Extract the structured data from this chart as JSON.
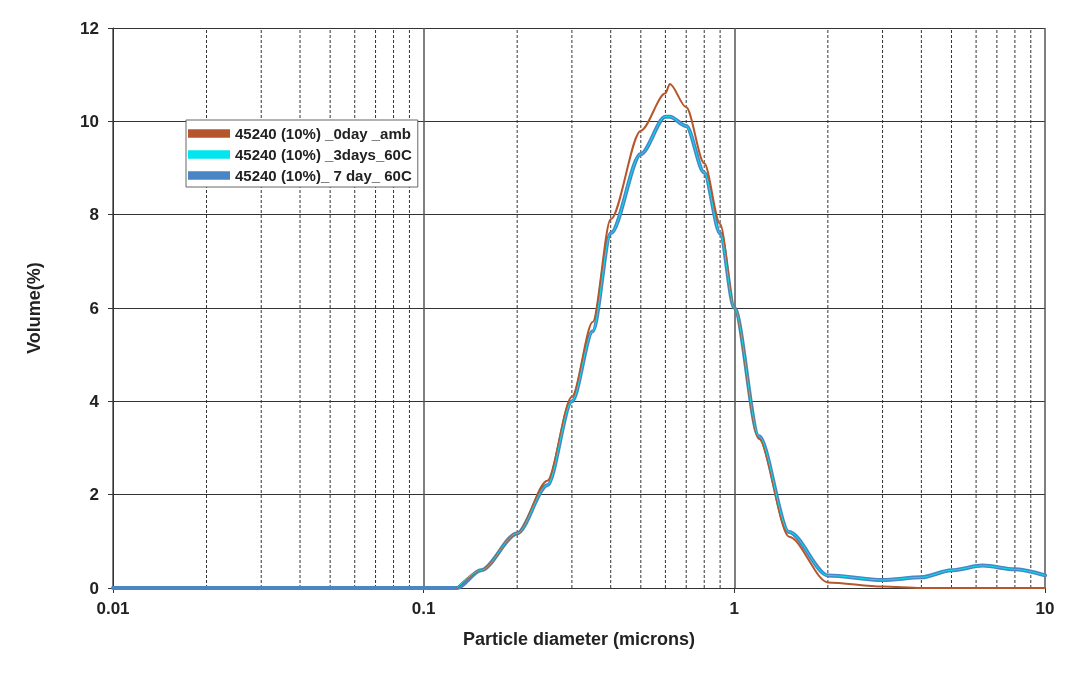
{
  "chart_data": {
    "type": "line",
    "xlabel": "Particle diameter (microns)",
    "ylabel": "Volume(%)",
    "x": [
      0.01,
      0.05,
      0.1,
      0.128,
      0.153,
      0.2,
      0.25,
      0.3,
      0.35,
      0.4,
      0.5,
      0.6,
      0.62,
      0.7,
      0.8,
      0.9,
      1.0,
      1.2,
      1.5,
      2,
      3,
      4,
      5,
      6.3,
      8,
      10
    ],
    "series": [
      {
        "name": "45240 (10%) _0day _amb",
        "color": "#b5572b",
        "values": [
          null,
          null,
          null,
          0,
          0.38,
          1.17,
          2.3,
          4.1,
          5.7,
          7.9,
          9.8,
          10.6,
          10.8,
          10.3,
          9.1,
          7.8,
          6.0,
          3.2,
          1.1,
          0.12,
          0.03,
          0,
          0,
          0,
          0,
          0
        ]
      },
      {
        "name": "45240 (10%) _3days_60C",
        "color": "#00e5ee",
        "values": [
          null,
          null,
          null,
          0,
          0.38,
          1.17,
          2.2,
          4.0,
          5.5,
          7.6,
          9.3,
          10.1,
          10.1,
          9.9,
          8.9,
          7.6,
          6.0,
          3.25,
          1.2,
          0.27,
          0.17,
          0.23,
          0.38,
          0.48,
          0.4,
          0.27
        ]
      },
      {
        "name": "45240 (10%)_ 7 day_ 60C",
        "color": "#4a86c5",
        "values": [
          0,
          0,
          0,
          0,
          0.38,
          1.17,
          2.2,
          4.0,
          5.5,
          7.6,
          9.3,
          10.1,
          10.1,
          9.9,
          8.9,
          7.6,
          6.0,
          3.25,
          1.2,
          0.27,
          0.17,
          0.23,
          0.38,
          0.48,
          0.4,
          0.27
        ]
      }
    ],
    "log": "x",
    "xlim": [
      0.01,
      10
    ],
    "xticks": [
      0.01,
      0.1,
      1,
      10
    ],
    "ylim": [
      0,
      12
    ],
    "yticks": [
      0,
      2,
      4,
      6,
      8,
      10,
      12
    ],
    "grid": true,
    "legend": "top left",
    "marker": "none",
    "line_style": "solid"
  }
}
